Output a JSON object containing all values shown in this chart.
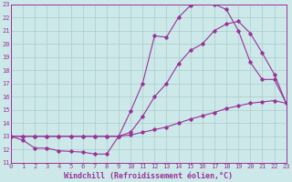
{
  "xlabel": "Windchill (Refroidissement éolien,°C)",
  "ylabel": "",
  "background_color": "#cce8e8",
  "grid_color": "#aacccc",
  "line_color": "#993399",
  "marker": "D",
  "markersize": 1.8,
  "linewidth": 0.8,
  "xlim": [
    0,
    23
  ],
  "ylim": [
    11,
    23
  ],
  "xticks": [
    0,
    1,
    2,
    3,
    4,
    5,
    6,
    7,
    8,
    9,
    10,
    11,
    12,
    13,
    14,
    15,
    16,
    17,
    18,
    19,
    20,
    21,
    22,
    23
  ],
  "yticks": [
    11,
    12,
    13,
    14,
    15,
    16,
    17,
    18,
    19,
    20,
    21,
    22,
    23
  ],
  "line1_x": [
    0,
    1,
    2,
    3,
    4,
    5,
    6,
    7,
    8,
    9,
    10,
    11,
    12,
    13,
    14,
    15,
    16,
    17,
    18,
    19,
    20,
    21,
    22,
    23
  ],
  "line1_y": [
    13.0,
    12.7,
    12.1,
    12.1,
    11.9,
    11.85,
    11.8,
    11.65,
    11.65,
    13.0,
    14.9,
    17.0,
    20.6,
    20.5,
    22.0,
    22.9,
    23.3,
    23.0,
    22.6,
    21.0,
    18.6,
    17.3,
    17.3,
    15.5
  ],
  "line2_x": [
    0,
    1,
    2,
    3,
    4,
    5,
    6,
    7,
    8,
    9,
    10,
    11,
    12,
    13,
    14,
    15,
    16,
    17,
    18,
    19,
    20,
    21,
    22,
    23
  ],
  "line2_y": [
    13.0,
    13.0,
    13.0,
    13.0,
    13.0,
    13.0,
    13.0,
    13.0,
    13.0,
    13.0,
    13.3,
    14.5,
    16.0,
    17.0,
    18.5,
    19.5,
    20.0,
    21.0,
    21.5,
    21.7,
    20.8,
    19.3,
    17.7,
    15.5
  ],
  "line3_x": [
    0,
    1,
    2,
    3,
    4,
    5,
    6,
    7,
    8,
    9,
    10,
    11,
    12,
    13,
    14,
    15,
    16,
    17,
    18,
    19,
    20,
    21,
    22,
    23
  ],
  "line3_y": [
    13.0,
    13.0,
    13.0,
    13.0,
    13.0,
    13.0,
    13.0,
    13.0,
    13.0,
    13.0,
    13.1,
    13.3,
    13.5,
    13.7,
    14.0,
    14.3,
    14.55,
    14.8,
    15.1,
    15.3,
    15.5,
    15.6,
    15.7,
    15.5
  ],
  "tick_fontsize": 5.0,
  "xlabel_fontsize": 6.0
}
